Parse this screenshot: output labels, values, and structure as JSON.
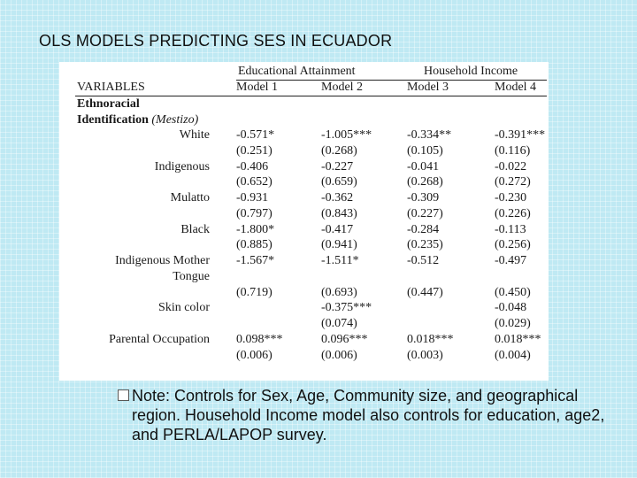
{
  "slide": {
    "title": "OLS MODELS PREDICTING SES IN ECUADOR"
  },
  "table": {
    "group_headers": [
      "Educational Attainment",
      "Household Income"
    ],
    "column_headers": [
      "VARIABLES",
      "Model 1",
      "Model 2",
      "Model 3",
      "Model 4"
    ],
    "section_label_line1": "Ethnoracial",
    "section_label_line2": "Identification",
    "section_reference": "(Mestizo)",
    "rows": [
      {
        "label": "White",
        "values": [
          "-0.571*",
          "-1.005***",
          "-0.334**",
          "-0.391***"
        ]
      },
      {
        "label": "",
        "values": [
          "(0.251)",
          "(0.268)",
          "(0.105)",
          "(0.116)"
        ]
      },
      {
        "label": "Indigenous",
        "values": [
          "-0.406",
          "-0.227",
          "-0.041",
          "-0.022"
        ]
      },
      {
        "label": "",
        "values": [
          "(0.652)",
          "(0.659)",
          "(0.268)",
          "(0.272)"
        ]
      },
      {
        "label": "Mulatto",
        "values": [
          "-0.931",
          "-0.362",
          "-0.309",
          "-0.230"
        ]
      },
      {
        "label": "",
        "values": [
          "(0.797)",
          "(0.843)",
          "(0.227)",
          "(0.226)"
        ]
      },
      {
        "label": "Black",
        "values": [
          "-1.800*",
          "-0.417",
          "-0.284",
          "-0.113"
        ]
      },
      {
        "label": "",
        "values": [
          "(0.885)",
          "(0.941)",
          "(0.235)",
          "(0.256)"
        ]
      },
      {
        "label": "Indigenous Mother",
        "values": [
          "-1.567*",
          "-1.511*",
          "-0.512",
          "-0.497"
        ]
      },
      {
        "label": "Tongue",
        "values": [
          "",
          "",
          "",
          ""
        ]
      },
      {
        "label": "",
        "values": [
          "(0.719)",
          "(0.693)",
          "(0.447)",
          "(0.450)"
        ]
      },
      {
        "label": "Skin color",
        "values": [
          "",
          "-0.375***",
          "",
          "-0.048"
        ]
      },
      {
        "label": "",
        "values": [
          "",
          "(0.074)",
          "",
          "(0.029)"
        ]
      },
      {
        "label": "Parental Occupation",
        "values": [
          "0.098***",
          "0.096***",
          "0.018***",
          "0.018***"
        ]
      },
      {
        "label": "",
        "values": [
          "(0.006)",
          "(0.006)",
          "(0.003)",
          "(0.004)"
        ]
      }
    ]
  },
  "note": {
    "bullet_icon": "square-bullet-icon",
    "text": "Note: Controls for Sex,  Age, Community size, and geographical region. Household Income model also controls for education, age2, and PERLA/LAPOP survey."
  }
}
